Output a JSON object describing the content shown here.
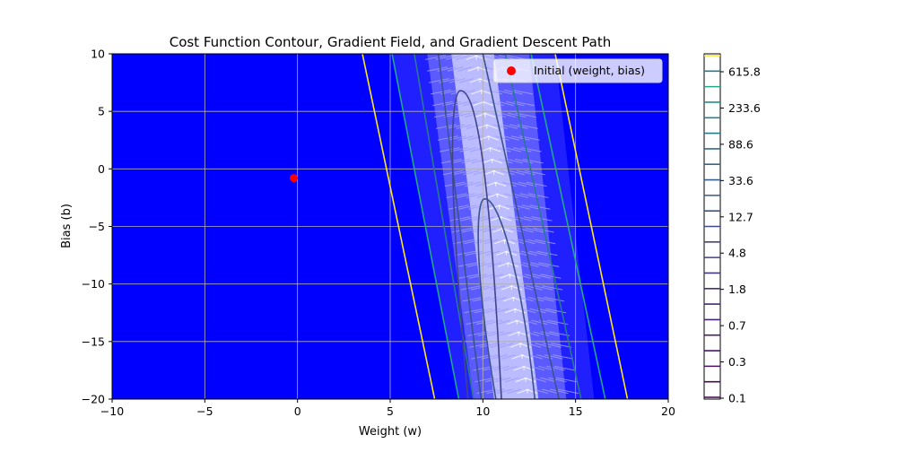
{
  "chart_data": {
    "type": "contour",
    "title": "Cost Function Contour, Gradient Field, and Gradient Descent Path",
    "xlabel": "Weight (w)",
    "ylabel": "Bias (b)",
    "xlim": [
      -10,
      20
    ],
    "ylim": [
      -20,
      10
    ],
    "x_ticks": [
      "−10",
      "−5",
      "0",
      "5",
      "10",
      "15",
      "20"
    ],
    "x_tick_values": [
      -10,
      -5,
      0,
      5,
      10,
      15,
      20
    ],
    "y_ticks": [
      "10",
      "5",
      "0",
      "−5",
      "−10",
      "−15",
      "−20"
    ],
    "y_tick_values": [
      10,
      5,
      0,
      -5,
      -10,
      -15,
      -20
    ],
    "grid": true,
    "background_color": "#0000ff",
    "legend": {
      "placement": "top-right",
      "entries": [
        {
          "label": "Initial (weight, bias)",
          "marker": "circle",
          "color": "#ff0000"
        }
      ]
    },
    "initial_point": {
      "x": -0.2,
      "y": -0.8
    },
    "contour_lines": [
      {
        "color": "#fde725",
        "left": [
          [
            3.5,
            10
          ],
          [
            7.4,
            -20
          ]
        ],
        "right": [
          [
            13.9,
            10
          ],
          [
            17.8,
            -20
          ]
        ]
      },
      {
        "color": "#22a884",
        "left": [
          [
            5.1,
            10
          ],
          [
            8.7,
            -20
          ]
        ],
        "right": [
          [
            12.6,
            10
          ],
          [
            16.6,
            -20
          ]
        ]
      },
      {
        "color": "#2a788e",
        "left": [
          [
            6.3,
            10
          ],
          [
            9.5,
            -20
          ]
        ],
        "right": [
          [
            11.2,
            10
          ],
          [
            15.3,
            -20
          ]
        ]
      },
      {
        "color": "#3b528b",
        "left": [
          [
            7.6,
            10
          ],
          [
            9.9,
            -20
          ]
        ],
        "right": [
          [
            10.0,
            10
          ],
          [
            14.1,
            -20
          ]
        ]
      }
    ],
    "closed_contours": [
      {
        "color": "#414487",
        "top": [
          8.8,
          6.8
        ],
        "bottom_left": [
          9.2,
          -20
        ],
        "bottom_right": [
          11.0,
          -20
        ]
      },
      {
        "color": "#3b528b",
        "top": [
          10.1,
          -2.6
        ],
        "bottom_left": [
          10.7,
          -20
        ],
        "bottom_right": [
          12.8,
          -20
        ]
      }
    ],
    "colorbar": {
      "tick_labels": [
        "615.8",
        "233.6",
        "88.6",
        "33.6",
        "12.7",
        "4.8",
        "1.8",
        "0.7",
        "0.3",
        "0.1"
      ],
      "level_colors": [
        "#440154",
        "#46085c",
        "#471063",
        "#481769",
        "#481d6f",
        "#482475",
        "#472a7a",
        "#46307e",
        "#453781",
        "#433d84",
        "#414487",
        "#3f4a8a",
        "#3b528b",
        "#38598c",
        "#355f8d",
        "#31688e",
        "#2e6e8e",
        "#2a788e",
        "#25838e",
        "#21918c",
        "#22a884",
        "#2a788e",
        "#fde725"
      ]
    }
  }
}
